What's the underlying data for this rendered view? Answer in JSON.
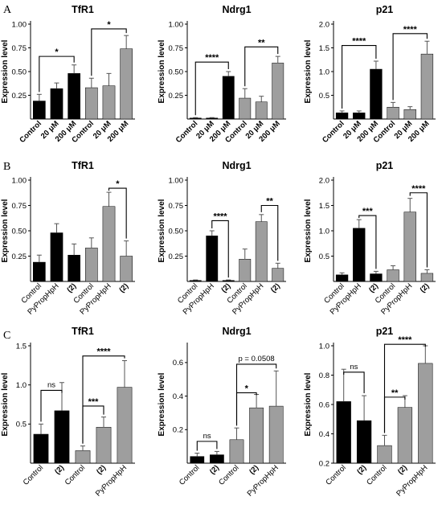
{
  "figure": {
    "colors": {
      "black_bar": "#000000",
      "gray_bar": "#9e9e9e",
      "error_bar": "#555555"
    },
    "panels": [
      "A",
      "B",
      "C"
    ]
  },
  "chart_data": [
    {
      "id": "A1",
      "panel": "A",
      "type": "bar",
      "title": "TfR1",
      "ylabel": "Expression level",
      "ylim": [
        0,
        1.0
      ],
      "yticks": [
        0.25,
        0.5,
        0.75,
        1.0
      ],
      "ytick_labels": [
        "0.25",
        "0.50",
        "0.75",
        "1.00"
      ],
      "categories": [
        "Control",
        "20 μM",
        "200 μM",
        "Control",
        "20 μM",
        "200 μM"
      ],
      "xtick_style": [
        "bold",
        "bold",
        "bold",
        "bold",
        "bold",
        "bold"
      ],
      "values": [
        0.19,
        0.32,
        0.48,
        0.33,
        0.35,
        0.74
      ],
      "errors": [
        0.07,
        0.06,
        0.09,
        0.1,
        0.13,
        0.14
      ],
      "colors": [
        "black",
        "black",
        "black",
        "gray",
        "gray",
        "gray"
      ],
      "significance": [
        {
          "from": 0,
          "to": 2,
          "label": "*",
          "y": 0.66
        },
        {
          "from": 3,
          "to": 5,
          "label": "*",
          "y": 0.95
        }
      ]
    },
    {
      "id": "A2",
      "panel": "A",
      "type": "bar",
      "title": "Ndrg1",
      "ylabel": "Expression level",
      "ylim": [
        0,
        1.0
      ],
      "yticks": [
        0.25,
        0.5,
        0.75,
        1.0
      ],
      "ytick_labels": [
        "0.25",
        "0.50",
        "0.75",
        "1.00"
      ],
      "categories": [
        "Control",
        "20 μM",
        "200 μM",
        "Control",
        "20 μM",
        "200 μM"
      ],
      "xtick_style": [
        "bold",
        "bold",
        "bold",
        "bold",
        "bold",
        "bold"
      ],
      "values": [
        0.01,
        0.01,
        0.45,
        0.22,
        0.18,
        0.59
      ],
      "errors": [
        0.005,
        0.005,
        0.05,
        0.1,
        0.06,
        0.07
      ],
      "colors": [
        "black",
        "black",
        "black",
        "gray",
        "gray",
        "gray"
      ],
      "significance": [
        {
          "from": 0,
          "to": 2,
          "label": "****",
          "y": 0.6
        },
        {
          "from": 3,
          "to": 5,
          "label": "**",
          "y": 0.76
        }
      ]
    },
    {
      "id": "A3",
      "panel": "A",
      "type": "bar",
      "title": "p21",
      "ylabel": "Expression level",
      "ylim": [
        0,
        2.0
      ],
      "yticks": [
        0.5,
        1.0,
        1.5,
        2.0
      ],
      "ytick_labels": [
        "0.5",
        "1.0",
        "1.5",
        "2.0"
      ],
      "categories": [
        "Control",
        "20 μM",
        "200 μM",
        "Control",
        "20 μM",
        "200 μM"
      ],
      "xtick_style": [
        "bold",
        "bold",
        "bold",
        "bold",
        "bold",
        "bold"
      ],
      "values": [
        0.13,
        0.13,
        1.05,
        0.25,
        0.2,
        1.37
      ],
      "errors": [
        0.04,
        0.04,
        0.17,
        0.1,
        0.06,
        0.27
      ],
      "colors": [
        "black",
        "black",
        "black",
        "gray",
        "gray",
        "gray"
      ],
      "significance": [
        {
          "from": 0,
          "to": 2,
          "label": "****",
          "y": 1.55
        },
        {
          "from": 3,
          "to": 5,
          "label": "****",
          "y": 1.8
        }
      ]
    },
    {
      "id": "B1",
      "panel": "B",
      "type": "bar",
      "title": "TfR1",
      "ylabel": "Expression level",
      "ylim": [
        0,
        1.0
      ],
      "yticks": [
        0.25,
        0.5,
        0.75,
        1.0
      ],
      "ytick_labels": [
        "0.25",
        "0.50",
        "0.75",
        "1.00"
      ],
      "categories": [
        "Control",
        "PyPropHpH",
        "(2)",
        "Control",
        "PyPropHpH",
        "(2)"
      ],
      "xtick_style": [
        "normal",
        "normal",
        "bold",
        "normal",
        "normal",
        "bold"
      ],
      "values": [
        0.19,
        0.48,
        0.26,
        0.33,
        0.74,
        0.25
      ],
      "errors": [
        0.07,
        0.09,
        0.11,
        0.1,
        0.14,
        0.15
      ],
      "colors": [
        "black",
        "black",
        "black",
        "gray",
        "gray",
        "gray"
      ],
      "significance": [
        {
          "from": 4,
          "to": 5,
          "label": "*",
          "y": 0.92
        }
      ]
    },
    {
      "id": "B2",
      "panel": "B",
      "type": "bar",
      "title": "Ndrg1",
      "ylabel": "Expression level",
      "ylim": [
        0,
        1.0
      ],
      "yticks": [
        0.25,
        0.5,
        0.75,
        1.0
      ],
      "ytick_labels": [
        "0.25",
        "0.50",
        "0.75",
        "1.00"
      ],
      "categories": [
        "Control",
        "PyPropHpH",
        "(2)",
        "Control",
        "PyPropHpH",
        "(2)"
      ],
      "xtick_style": [
        "normal",
        "normal",
        "bold",
        "normal",
        "normal",
        "bold"
      ],
      "values": [
        0.01,
        0.45,
        0.01,
        0.22,
        0.59,
        0.13
      ],
      "errors": [
        0.005,
        0.05,
        0.005,
        0.1,
        0.07,
        0.05
      ],
      "colors": [
        "black",
        "black",
        "black",
        "gray",
        "gray",
        "gray"
      ],
      "significance": [
        {
          "from": 1,
          "to": 2,
          "label": "****",
          "y": 0.6
        },
        {
          "from": 4,
          "to": 5,
          "label": "**",
          "y": 0.75
        }
      ]
    },
    {
      "id": "B3",
      "panel": "B",
      "type": "bar",
      "title": "p21",
      "ylabel": "Expression level",
      "ylim": [
        0,
        2.0
      ],
      "yticks": [
        0.5,
        1.0,
        1.5,
        2.0
      ],
      "ytick_labels": [
        "0.5",
        "1.0",
        "1.5",
        "2.0"
      ],
      "categories": [
        "Control",
        "PyPropHpH",
        "(2)",
        "Control",
        "PyPropHpH",
        "(2)"
      ],
      "xtick_style": [
        "normal",
        "normal",
        "bold",
        "normal",
        "normal",
        "bold"
      ],
      "values": [
        0.13,
        1.05,
        0.15,
        0.23,
        1.37,
        0.16
      ],
      "errors": [
        0.04,
        0.17,
        0.05,
        0.08,
        0.27,
        0.07
      ],
      "colors": [
        "black",
        "black",
        "black",
        "gray",
        "gray",
        "gray"
      ],
      "significance": [
        {
          "from": 1,
          "to": 2,
          "label": "***",
          "y": 1.3
        },
        {
          "from": 4,
          "to": 5,
          "label": "****",
          "y": 1.75
        }
      ]
    },
    {
      "id": "C1",
      "panel": "C",
      "type": "bar",
      "title": "TfR1",
      "ylabel": "Expression level",
      "ylim": [
        0,
        1.5
      ],
      "yticks": [
        0.5,
        1.0,
        1.5
      ],
      "ytick_labels": [
        "0.5",
        "1.0",
        "1.5"
      ],
      "categories": [
        "Control",
        "(2)",
        "Control",
        "(2)",
        "PyPropHpH"
      ],
      "xtick_style": [
        "normal",
        "bold",
        "normal",
        "bold",
        "normal"
      ],
      "values": [
        0.37,
        0.67,
        0.16,
        0.46,
        0.97
      ],
      "errors": [
        0.13,
        0.36,
        0.06,
        0.13,
        0.34
      ],
      "colors": [
        "black",
        "black",
        "gray",
        "gray",
        "gray"
      ],
      "significance": [
        {
          "from": 0,
          "to": 1,
          "label": "ns",
          "y": 0.93
        },
        {
          "from": 2,
          "to": 3,
          "label": "***",
          "y": 0.73
        },
        {
          "from": 2,
          "to": 4,
          "label": "****",
          "y": 1.37
        }
      ]
    },
    {
      "id": "C2",
      "panel": "C",
      "type": "bar",
      "title": "Ndrg1",
      "ylabel": "Expression level",
      "ylim": [
        0,
        0.7
      ],
      "yticks": [
        0.2,
        0.4,
        0.6
      ],
      "ytick_labels": [
        "0.2",
        "0.4",
        "0.6"
      ],
      "categories": [
        "Control",
        "(2)",
        "Control",
        "(2)",
        "PyPropHpH"
      ],
      "xtick_style": [
        "normal",
        "bold",
        "normal",
        "bold",
        "normal"
      ],
      "values": [
        0.04,
        0.05,
        0.14,
        0.33,
        0.34
      ],
      "errors": [
        0.02,
        0.02,
        0.07,
        0.08,
        0.21
      ],
      "colors": [
        "black",
        "black",
        "gray",
        "gray",
        "gray"
      ],
      "significance": [
        {
          "from": 0,
          "to": 1,
          "label": "ns",
          "y": 0.13
        },
        {
          "from": 2,
          "to": 3,
          "label": "*",
          "y": 0.42
        },
        {
          "from": 2,
          "to": 4,
          "label": "p = 0.0508",
          "y": 0.59
        }
      ]
    },
    {
      "id": "C3",
      "panel": "C",
      "type": "bar",
      "title": "p21",
      "ylabel": "Expression level",
      "ylim": [
        0.2,
        1.0
      ],
      "yticks": [
        0.2,
        0.4,
        0.6,
        0.8,
        1.0
      ],
      "ytick_labels": [
        "0.2",
        "0.4",
        "0.6",
        "0.8",
        "1.0"
      ],
      "categories": [
        "Control",
        "(2)",
        "Control",
        "(2)",
        "PyPropHpH"
      ],
      "xtick_style": [
        "normal",
        "bold",
        "normal",
        "bold",
        "normal"
      ],
      "values": [
        0.62,
        0.49,
        0.32,
        0.58,
        0.88
      ],
      "errors": [
        0.22,
        0.17,
        0.07,
        0.08,
        0.12
      ],
      "colors": [
        "black",
        "black",
        "gray",
        "gray",
        "gray"
      ],
      "significance": [
        {
          "from": 0,
          "to": 1,
          "label": "ns",
          "y": 0.82
        },
        {
          "from": 2,
          "to": 3,
          "label": "**",
          "y": 0.65
        },
        {
          "from": 2,
          "to": 4,
          "label": "****",
          "y": 1.01
        }
      ]
    }
  ]
}
